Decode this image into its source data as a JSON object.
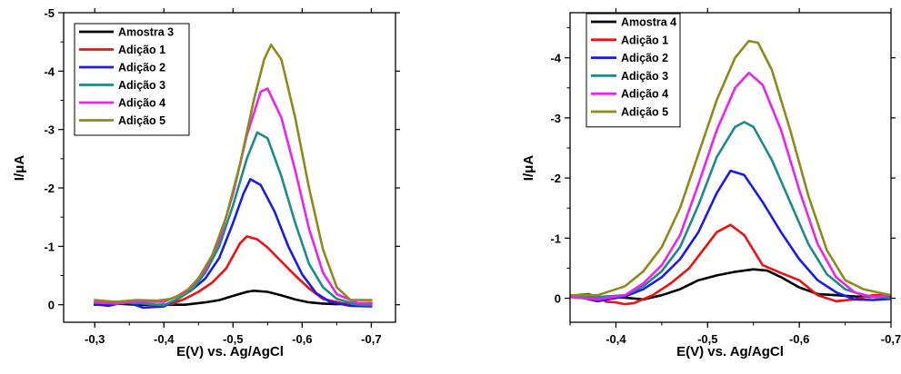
{
  "chart_data": [
    {
      "type": "line",
      "title": "",
      "xlabel": "E(V) vs. Ag/AgCl",
      "ylabel": "I/μA",
      "xlim": [
        -0.255,
        -0.735
      ],
      "ylim": [
        0.3,
        -5.0
      ],
      "x_ticks": [
        -0.3,
        -0.4,
        -0.5,
        -0.6,
        -0.7
      ],
      "x_tick_labels": [
        "-0,3",
        "-0,4",
        "-0,5",
        "-0,6",
        "-0,7"
      ],
      "y_ticks": [
        0,
        -1,
        -2,
        -3,
        -4,
        -5
      ],
      "y_tick_labels": [
        "0",
        "-1",
        "-2",
        "-3",
        "-4",
        "-5"
      ],
      "legend_position": "top-left",
      "grid": false,
      "series": [
        {
          "name": "Amostra 3",
          "color": "#000000",
          "x": [
            -0.3,
            -0.33,
            -0.36,
            -0.4,
            -0.43,
            -0.46,
            -0.48,
            -0.5,
            -0.52,
            -0.53,
            -0.55,
            -0.57,
            -0.59,
            -0.61,
            -0.63,
            -0.65,
            -0.67,
            -0.7
          ],
          "y": [
            0,
            -0.02,
            0,
            0,
            0,
            -0.04,
            -0.08,
            -0.15,
            -0.22,
            -0.24,
            -0.22,
            -0.16,
            -0.09,
            -0.04,
            -0.02,
            -0.01,
            -0.02,
            -0.03
          ]
        },
        {
          "name": "Adição 1",
          "color": "#ee1111",
          "x": [
            -0.3,
            -0.33,
            -0.36,
            -0.39,
            -0.41,
            -0.43,
            -0.45,
            -0.47,
            -0.49,
            -0.51,
            -0.52,
            -0.535,
            -0.55,
            -0.57,
            -0.59,
            -0.61,
            -0.63,
            -0.66,
            -0.7
          ],
          "y": [
            -0.02,
            -0.03,
            -0.05,
            0.02,
            -0.01,
            -0.1,
            -0.22,
            -0.38,
            -0.62,
            -1.05,
            -1.17,
            -1.12,
            -0.98,
            -0.74,
            -0.5,
            -0.28,
            -0.1,
            -0.02,
            -0.03
          ]
        },
        {
          "name": "Adição 2",
          "color": "#1a1aee",
          "x": [
            -0.3,
            -0.32,
            -0.345,
            -0.37,
            -0.4,
            -0.42,
            -0.44,
            -0.46,
            -0.48,
            -0.5,
            -0.515,
            -0.525,
            -0.54,
            -0.56,
            -0.58,
            -0.6,
            -0.62,
            -0.64,
            -0.67,
            -0.7
          ],
          "y": [
            -0.01,
            0.02,
            -0.05,
            0.05,
            0.03,
            -0.1,
            -0.25,
            -0.45,
            -0.8,
            -1.4,
            -1.9,
            -2.15,
            -2.05,
            -1.6,
            -1.0,
            -0.52,
            -0.2,
            -0.05,
            0.02,
            0.03
          ]
        },
        {
          "name": "Adição 3",
          "color": "#1f8a8a",
          "x": [
            -0.3,
            -0.33,
            -0.36,
            -0.4,
            -0.42,
            -0.44,
            -0.46,
            -0.48,
            -0.5,
            -0.52,
            -0.535,
            -0.55,
            -0.57,
            -0.59,
            -0.61,
            -0.63,
            -0.65,
            -0.68,
            -0.7
          ],
          "y": [
            -0.03,
            -0.05,
            -0.03,
            0.01,
            -0.1,
            -0.25,
            -0.55,
            -1.0,
            -1.7,
            -2.5,
            -2.95,
            -2.85,
            -2.2,
            -1.4,
            -0.7,
            -0.3,
            -0.1,
            0,
            0.01
          ]
        },
        {
          "name": "Adição 4",
          "color": "#ee22ee",
          "x": [
            -0.3,
            -0.33,
            -0.36,
            -0.4,
            -0.42,
            -0.44,
            -0.46,
            -0.48,
            -0.5,
            -0.52,
            -0.54,
            -0.55,
            -0.57,
            -0.59,
            -0.61,
            -0.63,
            -0.65,
            -0.68,
            -0.7
          ],
          "y": [
            -0.04,
            -0.02,
            -0.05,
            -0.05,
            -0.15,
            -0.3,
            -0.6,
            -1.1,
            -1.9,
            -2.9,
            -3.65,
            -3.7,
            -3.2,
            -2.3,
            -1.3,
            -0.55,
            -0.18,
            -0.03,
            -0.02
          ]
        },
        {
          "name": "Adição 5",
          "color": "#8b8b1a",
          "x": [
            -0.3,
            -0.33,
            -0.36,
            -0.39,
            -0.41,
            -0.43,
            -0.45,
            -0.47,
            -0.49,
            -0.51,
            -0.53,
            -0.545,
            -0.555,
            -0.57,
            -0.59,
            -0.61,
            -0.63,
            -0.65,
            -0.67,
            -0.7
          ],
          "y": [
            -0.08,
            -0.05,
            -0.08,
            -0.07,
            -0.1,
            -0.2,
            -0.45,
            -0.85,
            -1.5,
            -2.4,
            -3.5,
            -4.2,
            -4.45,
            -4.2,
            -3.2,
            -2.0,
            -0.95,
            -0.3,
            -0.08,
            -0.08
          ]
        }
      ]
    },
    {
      "type": "line",
      "title": "",
      "xlabel": "E(V) vs. Ag/AgCl",
      "ylabel": "I/μA",
      "xlim": [
        -0.35,
        -0.7
      ],
      "ylim": [
        0.4,
        -4.75
      ],
      "x_ticks": [
        -0.4,
        -0.5,
        -0.6,
        -0.7
      ],
      "x_tick_labels": [
        "-0,4",
        "-0,5",
        "-0,6",
        "-0,7"
      ],
      "y_ticks": [
        0,
        -1,
        -2,
        -3,
        -4
      ],
      "y_tick_labels": [
        "0",
        "-1",
        "-2",
        "-3",
        "-4"
      ],
      "legend_position": "top-left",
      "grid": false,
      "series": [
        {
          "name": "Amostra 4",
          "color": "#000000",
          "x": [
            -0.35,
            -0.37,
            -0.39,
            -0.41,
            -0.43,
            -0.45,
            -0.47,
            -0.49,
            -0.51,
            -0.53,
            -0.55,
            -0.565,
            -0.58,
            -0.6,
            -0.62,
            -0.64,
            -0.66,
            -0.68,
            -0.7
          ],
          "y": [
            -0.02,
            -0.01,
            -0.02,
            -0.01,
            0.02,
            -0.05,
            -0.15,
            -0.3,
            -0.38,
            -0.44,
            -0.48,
            -0.46,
            -0.35,
            -0.18,
            -0.07,
            -0.05,
            -0.03,
            -0.02,
            -0.02
          ]
        },
        {
          "name": "Adição 1",
          "color": "#ee1111",
          "x": [
            -0.35,
            -0.37,
            -0.38,
            -0.39,
            -0.4,
            -0.41,
            -0.42,
            -0.44,
            -0.46,
            -0.48,
            -0.5,
            -0.51,
            -0.525,
            -0.54,
            -0.56,
            -0.58,
            -0.6,
            -0.62,
            -0.64,
            -0.66,
            -0.68,
            -0.7
          ],
          "y": [
            -0.04,
            -0.07,
            -0.02,
            0.06,
            0.07,
            0.1,
            0.08,
            -0.05,
            -0.25,
            -0.5,
            -0.9,
            -1.1,
            -1.22,
            -1.05,
            -0.55,
            -0.42,
            -0.3,
            -0.05,
            0.05,
            0.02,
            -0.05,
            -0.05
          ]
        },
        {
          "name": "Adição 2",
          "color": "#1a1aee",
          "x": [
            -0.35,
            -0.38,
            -0.41,
            -0.43,
            -0.45,
            -0.47,
            -0.49,
            -0.51,
            -0.525,
            -0.54,
            -0.56,
            -0.58,
            -0.6,
            -0.62,
            -0.64,
            -0.66,
            -0.68,
            -0.7
          ],
          "y": [
            -0.05,
            0.05,
            -0.03,
            -0.15,
            -0.35,
            -0.65,
            -1.1,
            -1.75,
            -2.12,
            -2.05,
            -1.6,
            -1.1,
            -0.65,
            -0.3,
            -0.1,
            0.02,
            0.03,
            0.01
          ]
        },
        {
          "name": "Adição 3",
          "color": "#1f8a8a",
          "x": [
            -0.35,
            -0.38,
            -0.41,
            -0.43,
            -0.45,
            -0.47,
            -0.49,
            -0.51,
            -0.53,
            -0.54,
            -0.55,
            -0.57,
            -0.59,
            -0.61,
            -0.63,
            -0.65,
            -0.67,
            -0.7
          ],
          "y": [
            -0.05,
            -0.02,
            -0.05,
            -0.2,
            -0.45,
            -0.85,
            -1.55,
            -2.35,
            -2.85,
            -2.93,
            -2.85,
            -2.3,
            -1.6,
            -0.9,
            -0.4,
            -0.15,
            -0.05,
            0
          ]
        },
        {
          "name": "Adição 4",
          "color": "#ee22ee",
          "x": [
            -0.35,
            -0.38,
            -0.41,
            -0.43,
            -0.45,
            -0.47,
            -0.49,
            -0.51,
            -0.53,
            -0.545,
            -0.56,
            -0.58,
            -0.6,
            -0.62,
            -0.64,
            -0.66,
            -0.68,
            -0.7
          ],
          "y": [
            -0.02,
            0.02,
            -0.05,
            -0.25,
            -0.55,
            -1.05,
            -1.9,
            -2.8,
            -3.5,
            -3.75,
            -3.55,
            -2.8,
            -1.8,
            -0.9,
            -0.35,
            -0.1,
            -0.02,
            -0.05
          ]
        },
        {
          "name": "Adição 5",
          "color": "#8b8b1a",
          "x": [
            -0.35,
            -0.38,
            -0.41,
            -0.43,
            -0.45,
            -0.47,
            -0.49,
            -0.51,
            -0.53,
            -0.545,
            -0.555,
            -0.57,
            -0.59,
            -0.61,
            -0.63,
            -0.65,
            -0.67,
            -0.7
          ],
          "y": [
            -0.05,
            -0.05,
            -0.2,
            -0.45,
            -0.85,
            -1.5,
            -2.4,
            -3.3,
            -4.0,
            -4.28,
            -4.25,
            -3.8,
            -2.8,
            -1.7,
            -0.8,
            -0.3,
            -0.15,
            -0.05
          ]
        }
      ]
    }
  ]
}
